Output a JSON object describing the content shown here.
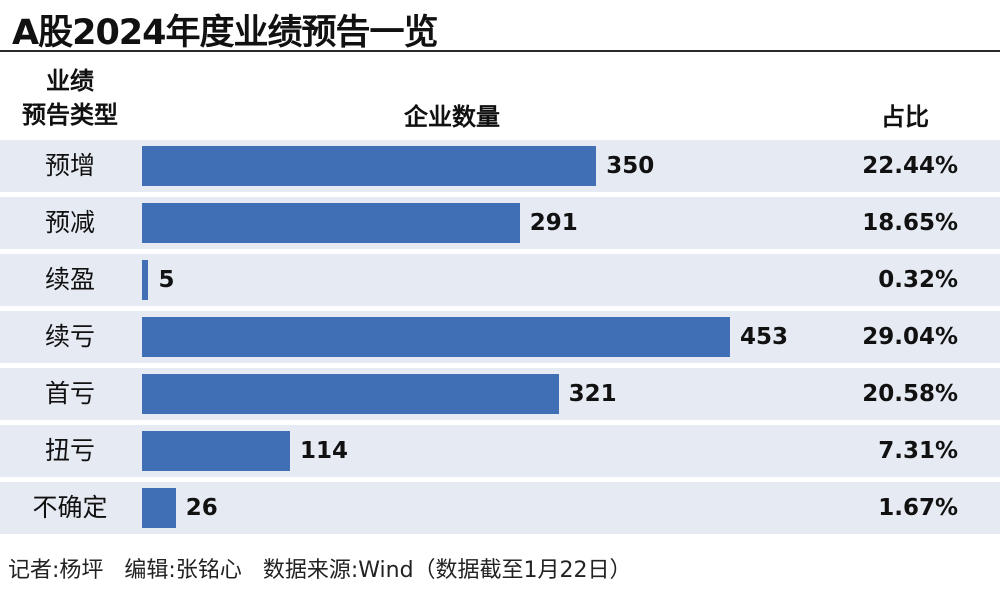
{
  "title": "A股2024年度业绩预告一览",
  "headers": {
    "type_line1": "业绩",
    "type_line2": "预告类型",
    "count": "企业数量",
    "ratio": "占比"
  },
  "chart_data": {
    "type": "bar",
    "orientation": "horizontal",
    "categories": [
      "预增",
      "预减",
      "续盈",
      "续亏",
      "首亏",
      "扭亏",
      "不确定"
    ],
    "values": [
      350,
      291,
      5,
      453,
      321,
      114,
      26
    ],
    "percent_labels": [
      "22.44%",
      "18.65%",
      "0.32%",
      "29.04%",
      "20.58%",
      "7.31%",
      "1.67%"
    ],
    "title": "A股2024年度业绩预告一览",
    "xlabel": "企业数量",
    "ylabel": "业绩预告类型",
    "grid": false,
    "bar_color": "#416fb6",
    "row_bg_color": "#e6eaf3"
  },
  "footer": {
    "reporter": "记者:杨坪",
    "editor": "编辑:张铭心",
    "source": "数据来源:Wind（数据截至1月22日）"
  }
}
